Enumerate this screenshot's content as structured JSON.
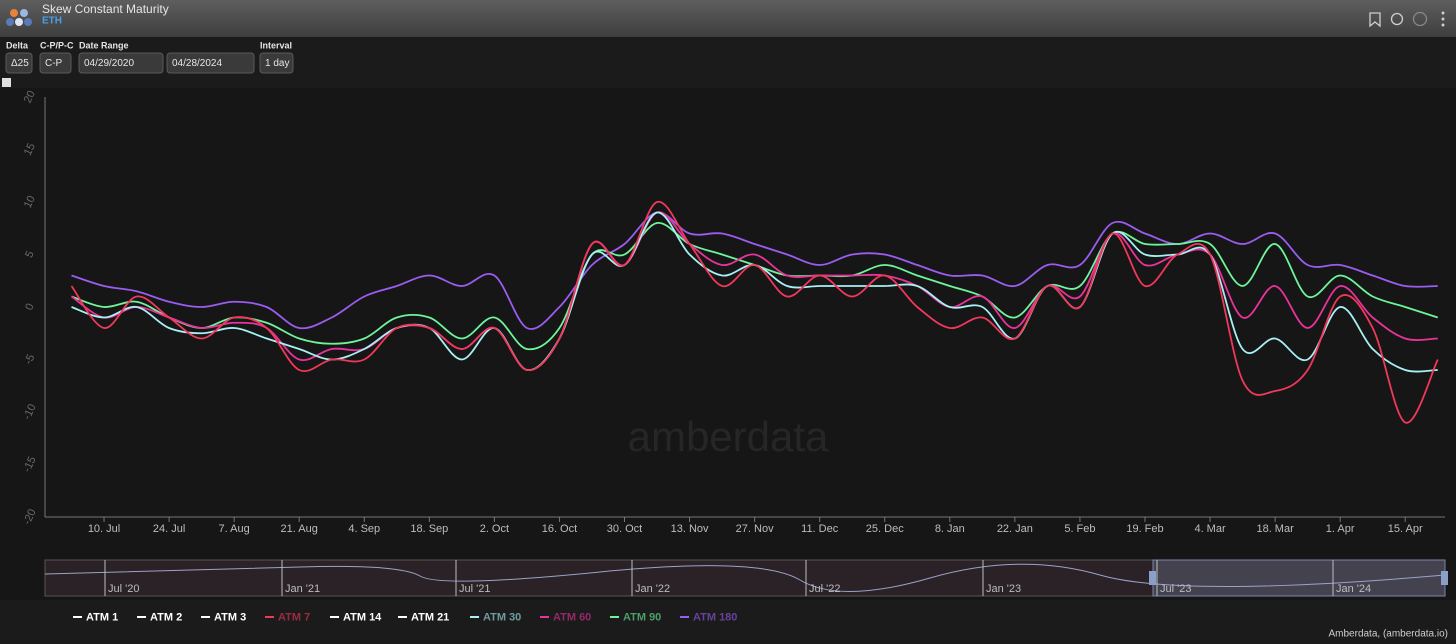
{
  "ui": {
    "title": "Skew Constant Maturity",
    "subtitle": "ETH",
    "controls": [
      {
        "label": "Delta",
        "value": "Δ25"
      },
      {
        "label": "C-P/P-C",
        "value": "C-P"
      },
      {
        "label": "Date Range",
        "value": "04/29/2020"
      },
      {
        "label": null,
        "value": "04/28/2024"
      },
      {
        "label": "Interval",
        "value": "1 day"
      }
    ],
    "watermark": "amberdata",
    "credit": "Amberdata, (amberdata.io)",
    "navigator_labels": [
      "Jul '20",
      "Jan '21",
      "Jul '21",
      "Jan '22",
      "Jul '22",
      "Jan '23",
      "Jul '23",
      "Jan '24"
    ]
  },
  "chart_data": {
    "type": "line",
    "categories": [
      null,
      "10. Jul",
      null,
      "24. Jul",
      null,
      "7. Aug",
      null,
      "21. Aug",
      null,
      "4. Sep",
      null,
      "18. Sep",
      null,
      "2. Oct",
      null,
      "16. Oct",
      null,
      "30. Oct",
      null,
      "13. Nov",
      null,
      "27. Nov",
      null,
      "11. Dec",
      null,
      "25. Dec",
      null,
      "8. Jan",
      null,
      "22. Jan",
      null,
      "5. Feb",
      null,
      "19. Feb",
      null,
      "4. Mar",
      null,
      "18. Mar",
      null,
      "1. Apr",
      null,
      "15. Apr",
      null
    ],
    "ylim": [
      -20,
      20
    ],
    "yticks": [
      -20,
      -15,
      -10,
      -5,
      0,
      5,
      10,
      15,
      20
    ],
    "grid": false,
    "series": [
      {
        "name": "ATM 1",
        "color": "#ffffff"
      },
      {
        "name": "ATM 2",
        "color": "#ffffff"
      },
      {
        "name": "ATM 3",
        "color": "#ffffff"
      },
      {
        "name": "ATM 7",
        "color": "#f2385a",
        "values": [
          2,
          -2,
          1,
          -1,
          -3,
          -1,
          -2,
          -6,
          -5,
          -5,
          -2,
          -2,
          -4,
          -2,
          -6,
          -3,
          6,
          4,
          10,
          6,
          2,
          4,
          1,
          3,
          1,
          3,
          0,
          -2,
          -1,
          -3,
          2,
          0,
          7,
          2,
          5,
          5,
          -7,
          -8,
          -6,
          1,
          -2,
          -11,
          -5
        ]
      },
      {
        "name": "ATM 14",
        "color": "#ffffff"
      },
      {
        "name": "ATM 21",
        "color": "#ffffff"
      },
      {
        "name": "ATM 30",
        "color": "#a8f0f5",
        "values": [
          0,
          -1,
          0,
          -2,
          -2.5,
          -2,
          -3,
          -4,
          -5,
          -4,
          -2,
          -2,
          -5,
          -2,
          -6,
          -3,
          5,
          4,
          9,
          5,
          3,
          4,
          2,
          2,
          2,
          2,
          2,
          0,
          0,
          -3,
          2,
          0,
          7,
          5,
          5,
          5,
          -4,
          -3,
          -5,
          0,
          -4,
          -6,
          -6
        ]
      },
      {
        "name": "ATM 60",
        "color": "#e8339b",
        "values": [
          1,
          -1,
          0,
          -1,
          -2,
          -1.5,
          -2,
          -5,
          -4,
          -4,
          -2,
          -2,
          -4,
          -2,
          -6,
          -3,
          6,
          4,
          9,
          6,
          4,
          5,
          3,
          3,
          3,
          3,
          2,
          0,
          1,
          -2,
          2,
          1,
          7,
          4,
          5,
          5,
          -1,
          2,
          -2,
          2,
          -1,
          -3,
          -3
        ]
      },
      {
        "name": "ATM 90",
        "color": "#6ef59a",
        "values": [
          1,
          0,
          0.5,
          -1,
          -2,
          -1,
          -1.5,
          -3,
          -3.5,
          -3,
          -1,
          -1,
          -3,
          -1,
          -4,
          -2,
          5,
          5,
          8,
          6,
          5,
          4,
          3,
          3,
          3,
          4,
          3,
          2,
          1,
          -1,
          2,
          2,
          7,
          6,
          6,
          6,
          2,
          6,
          1,
          3,
          1,
          0,
          -1
        ]
      },
      {
        "name": "ATM 180",
        "color": "#9b5cf0",
        "values": [
          3,
          2,
          1.5,
          0.5,
          0,
          0.5,
          0,
          -2,
          -1,
          1,
          2,
          3,
          2,
          3,
          -2,
          0,
          4,
          6,
          9,
          7,
          7,
          6,
          5,
          4,
          5,
          5,
          4,
          3,
          3,
          2,
          4,
          4,
          8,
          7,
          6,
          7,
          6,
          7,
          4,
          4,
          3,
          2,
          2
        ]
      }
    ]
  }
}
